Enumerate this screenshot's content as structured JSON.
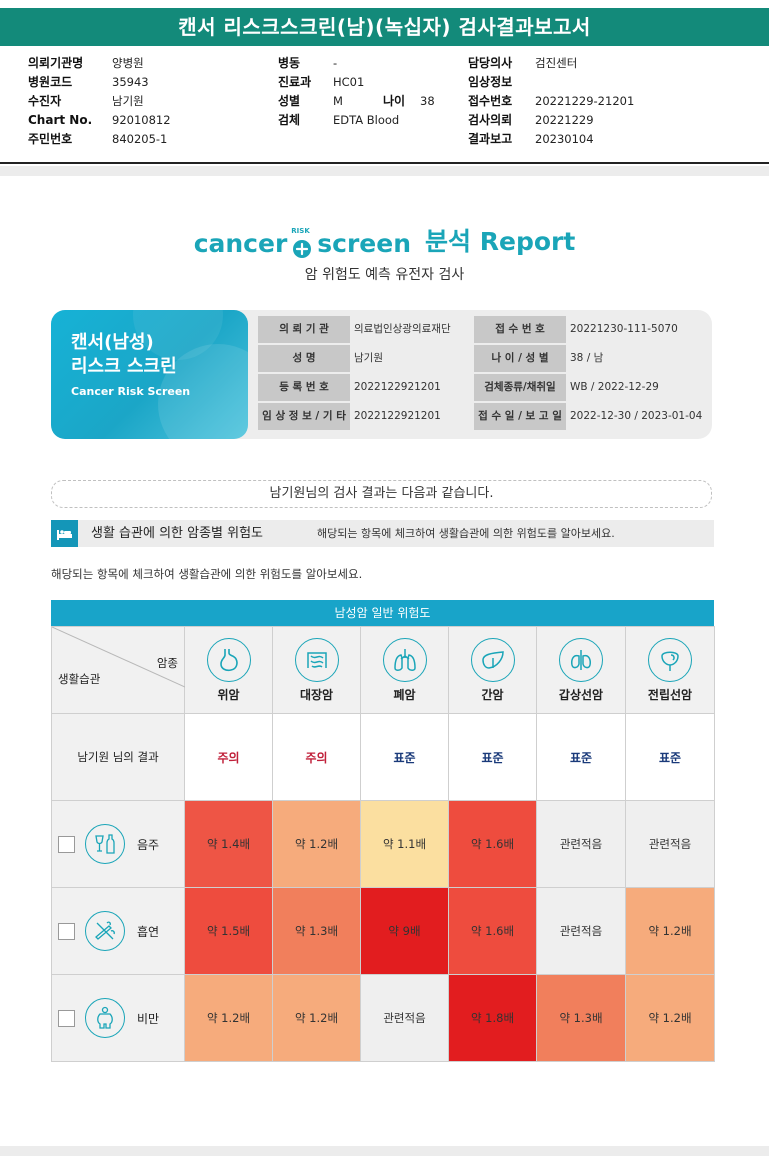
{
  "report_title": "캔서 리스크스크린(남)(녹십자) 검사결과보고서",
  "meta": {
    "col1": [
      {
        "label": "의뢰기관명",
        "value": "양병원"
      },
      {
        "label": "병원코드",
        "value": "35943"
      },
      {
        "label": "수진자",
        "value": "남기원"
      },
      {
        "label": "Chart No.",
        "value": "92010812"
      },
      {
        "label": "주민번호",
        "value": "840205-1"
      }
    ],
    "col2": [
      {
        "label": "병동",
        "value": "-"
      },
      {
        "label": "진료과",
        "value": "HC01"
      },
      {
        "label": "성별",
        "value": "M"
      },
      {
        "label": "검체",
        "value": "EDTA Blood"
      }
    ],
    "age_label": "나이",
    "age_value": "38",
    "col3": [
      {
        "label": "담당의사",
        "value": "검진센터"
      },
      {
        "label": "임상정보",
        "value": ""
      },
      {
        "label": "접수번호",
        "value": "20221229-21201"
      },
      {
        "label": "검사의뢰",
        "value": "20221229"
      },
      {
        "label": "결과보고",
        "value": "20230104"
      }
    ]
  },
  "brand": {
    "cancer": "cancer",
    "risk": "RISK",
    "screen": "screen",
    "report": "분석 Report",
    "subtitle": "암 위험도 예측 유전자 검사"
  },
  "card": {
    "title1": "캔서(남성)",
    "title2": "리스크 스크린",
    "title_en": "Cancer Risk Screen",
    "rows": [
      {
        "l1": "의 뢰 기 관",
        "v1": "의료법인상광의료재단",
        "l2": "접 수 번 호",
        "v2": "20221230-111-5070"
      },
      {
        "l1": "성 명",
        "v1": "남기원",
        "l2": "나 이 / 성 별",
        "v2": "38 / 남"
      },
      {
        "l1": "등 록 번 호",
        "v1": "2022122921201",
        "l2": "검체종류/채취일",
        "v2": "WB / 2022-12-29"
      },
      {
        "l1": "임 상 정 보 / 기 타",
        "v1": "2022122921201",
        "l2": "접 수 일 / 보 고 일",
        "v2": "2022-12-30 / 2023-01-04"
      }
    ]
  },
  "notice": "남기원님의 검사 결과는 다음과 같습니다.",
  "section": {
    "title": "생활 습관에 의한 암종별 위험도",
    "hint": "해당되는 항목에 체크하여 생활습관에 의한 위험도를 알아보세요.",
    "icon": "bed-icon"
  },
  "desc": "해당되는 항목에 체크하여 생활습관에 의한 위험도를 알아보세요.",
  "table": {
    "header": "남성암 일반 위험도",
    "corner_top": "암종",
    "corner_bottom": "생활습관",
    "cancers": [
      {
        "name": "위암",
        "icon": "stomach-icon"
      },
      {
        "name": "대장암",
        "icon": "colon-icon"
      },
      {
        "name": "폐암",
        "icon": "lung-icon"
      },
      {
        "name": "간암",
        "icon": "liver-icon"
      },
      {
        "name": "갑상선암",
        "icon": "thyroid-icon"
      },
      {
        "name": "전립선암",
        "icon": "prostate-icon"
      }
    ],
    "result_label": "남기원 님의 결과",
    "results": [
      "주의",
      "주의",
      "표준",
      "표준",
      "표준",
      "표준"
    ],
    "habits": [
      {
        "name": "음주",
        "icon": "alcohol-icon",
        "cells": [
          {
            "text": "약 1.4배",
            "color": "#ee5545"
          },
          {
            "text": "약 1.2배",
            "color": "#f6ab7c"
          },
          {
            "text": "약 1.1배",
            "color": "#fbdfa0"
          },
          {
            "text": "약 1.6배",
            "color": "#ee4c3e"
          },
          {
            "text": "관련적음",
            "color": "#efefef"
          },
          {
            "text": "관련적음",
            "color": "#efefef"
          }
        ]
      },
      {
        "name": "흡연",
        "icon": "smoking-icon",
        "cells": [
          {
            "text": "약 1.5배",
            "color": "#ee4c3e"
          },
          {
            "text": "약 1.3배",
            "color": "#f17f5c"
          },
          {
            "text": "약 9배",
            "color": "#e21d1f"
          },
          {
            "text": "약 1.6배",
            "color": "#ee4c3e"
          },
          {
            "text": "관련적음",
            "color": "#efefef"
          },
          {
            "text": "약 1.2배",
            "color": "#f6ab7c"
          }
        ]
      },
      {
        "name": "비만",
        "icon": "obesity-icon",
        "cells": [
          {
            "text": "약 1.2배",
            "color": "#f6ab7c"
          },
          {
            "text": "약 1.2배",
            "color": "#f6ab7c"
          },
          {
            "text": "관련적음",
            "color": "#efefef"
          },
          {
            "text": "약 1.8배",
            "color": "#e21d1f"
          },
          {
            "text": "약 1.3배",
            "color": "#f17f5c"
          },
          {
            "text": "약 1.2배",
            "color": "#f6ab7c"
          }
        ]
      }
    ]
  }
}
